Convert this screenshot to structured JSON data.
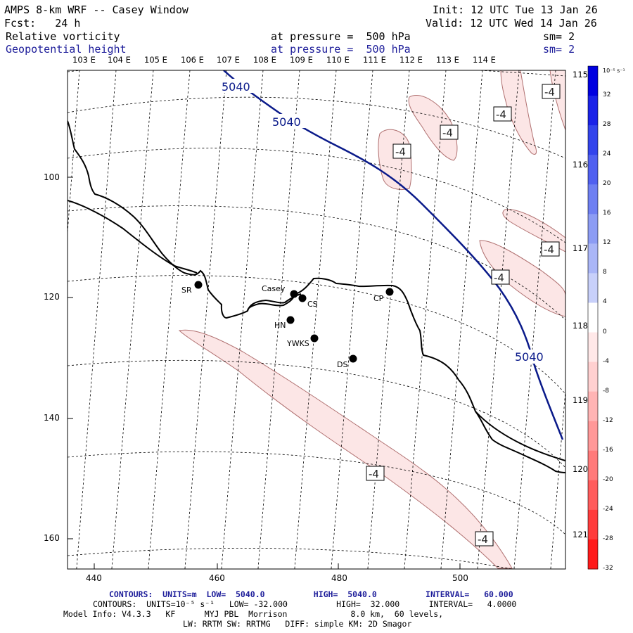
{
  "header": {
    "title": "AMPS 8-km WRF -- Casey Window",
    "init": "Init: 12 UTC Tue 13 Jan 26",
    "fcst": "Fcst:   24 h",
    "valid": "Valid: 12 UTC Wed 14 Jan 26",
    "field1_name": "Relative vorticity",
    "field1_level": "at pressure =  500 hPa",
    "field1_sm": "sm= 2",
    "field2_name": "Geopotential height",
    "field2_level": "at pressure =  500 hPa",
    "field2_sm": "sm= 2"
  },
  "longitude_labels": [
    "103 E",
    "104 E",
    "105 E",
    "106 E",
    "107 E",
    "108 E",
    "109 E",
    "110 E",
    "111 E",
    "112 E",
    "113 E",
    "114 E"
  ],
  "latitude_labels": [
    "115 E",
    "116 E",
    "117 E",
    "118 E",
    "119 E",
    "120 E",
    "121 E"
  ],
  "y_ticks": [
    "100",
    "120",
    "140",
    "160"
  ],
  "x_ticks": [
    "440",
    "460",
    "480",
    "500"
  ],
  "stations": [
    {
      "id": "SR",
      "label": "SR"
    },
    {
      "id": "Casey",
      "label": "Casey"
    },
    {
      "id": "CS",
      "label": "CS"
    },
    {
      "id": "HN",
      "label": "HN"
    },
    {
      "id": "YWKS",
      "label": "YWKS"
    },
    {
      "id": "CP",
      "label": "CP"
    },
    {
      "id": "DS",
      "label": "DS"
    }
  ],
  "height_contour_labels": [
    "5040",
    "5040",
    "5040"
  ],
  "vorticity_contour_labels": [
    "-4",
    "-4",
    "-4",
    "-4",
    "-4",
    "-4",
    "-4",
    "-4"
  ],
  "colorbar": {
    "unit": "10⁻⁵ s⁻¹",
    "ticks": [
      "32",
      "28",
      "24",
      "20",
      "16",
      "12",
      "8",
      "4",
      "0",
      "-4",
      "-8",
      "-12",
      "-16",
      "-20",
      "-24",
      "-28",
      "-32"
    ],
    "colors": [
      "#0000e0",
      "#1a22e8",
      "#3344ec",
      "#5060f0",
      "#6e7ff2",
      "#8c9cf4",
      "#aab6f7",
      "#c8d0fa",
      "#ffffff",
      "#ffe8e8",
      "#ffd0d0",
      "#ffb4b4",
      "#ff9898",
      "#ff7a7a",
      "#ff5c5c",
      "#ff3c3c",
      "#ff1a1a"
    ]
  },
  "footer": {
    "contours1": "CONTOURS:  UNITS=m  LOW=  5040.0          HIGH=  5040.0          INTERVAL=   60.000",
    "contours2": "CONTOURS:  UNITS=10⁻⁵ s⁻¹   LOW= -32.000          HIGH=  32.000      INTERVAL=   4.0000",
    "model1": "Model Info: V4.3.3   KF      MYJ PBL  Morrison             8.0 km,  60 levels,",
    "model2": "LW: RRTM SW: RRTMG   DIFF: simple KM: 2D Smagor"
  },
  "colors": {
    "height_contour": "#0a1a8a",
    "vort_fill": "#fce6e6",
    "coast": "#000000"
  }
}
